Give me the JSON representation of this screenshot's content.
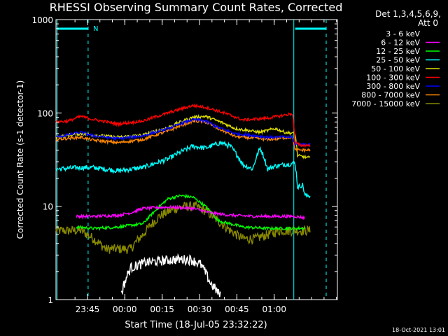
{
  "chart_data": {
    "type": "line",
    "title": "RHESSI Observing Summary Count Rates, Corrected",
    "ylabel": "Corrected Count Rate (s-1 detector-1)",
    "xlabel": "Start Time (18-Jul-05 23:32:22)",
    "yscale": "log",
    "ylim": [
      1,
      1000
    ],
    "xlim_minutes": [
      0,
      113
    ],
    "yticks": [
      "1",
      "10",
      "100",
      "1000"
    ],
    "xticks": [
      {
        "label": "23:45",
        "minutes": 12.63
      },
      {
        "label": "00:00",
        "minutes": 27.63
      },
      {
        "label": "00:15",
        "minutes": 42.63
      },
      {
        "label": "00:30",
        "minutes": 57.63
      },
      {
        "label": "00:45",
        "minutes": 72.63
      },
      {
        "label": "01:00",
        "minutes": 87.63
      }
    ],
    "legend_header": [
      "Det 1,3,4,5,6,9,",
      "Att 0"
    ],
    "legend_placement": "right",
    "annotation_N": "N",
    "dashed_lines_minutes": [
      12.9,
      108.5
    ],
    "solid_lines_minutes": [
      0,
      95.5
    ],
    "night_segments": [
      [
        0,
        13
      ],
      [
        95.5,
        108.5
      ]
    ],
    "series": [
      {
        "name": "3 - 6 keV",
        "color": "#000000",
        "times": [
          0,
          20,
          26,
          30,
          36,
          42,
          48,
          54,
          58,
          62,
          66,
          75,
          90,
          113
        ],
        "values": [
          null,
          null,
          1.1,
          2.2,
          2.5,
          2.6,
          2.7,
          2.7,
          2.4,
          1.5,
          1.1,
          null,
          null,
          null
        ]
      },
      {
        "name": "6 - 12 keV",
        "color": "#ff00ff",
        "times": [
          0,
          8,
          15,
          25,
          30,
          35,
          45,
          55,
          62,
          70,
          80,
          90,
          96,
          100
        ],
        "values": [
          null,
          7.8,
          7.8,
          8.0,
          8.5,
          9.5,
          9.8,
          9.5,
          8.5,
          8.0,
          7.8,
          7.8,
          7.8,
          7.5
        ]
      },
      {
        "name": "12 - 25 keV",
        "color": "#00ff00",
        "times": [
          0,
          8,
          15,
          25,
          35,
          40,
          45,
          50,
          55,
          60,
          65,
          75,
          85,
          95,
          100
        ],
        "values": [
          null,
          6.0,
          5.8,
          6.0,
          6.5,
          9.0,
          12.0,
          13.0,
          12.5,
          10.0,
          7.0,
          6.0,
          5.8,
          5.8,
          5.8
        ]
      },
      {
        "name": "25 - 50 keV",
        "color": "#00ffff",
        "times": [
          0,
          10,
          15,
          25,
          35,
          45,
          55,
          60,
          63,
          66,
          70,
          75,
          79,
          82,
          85,
          88,
          92,
          96,
          97,
          99,
          100,
          102
        ],
        "values": [
          25,
          26,
          26,
          24,
          26,
          32,
          44,
          42,
          45,
          48,
          44,
          28,
          25,
          42,
          25,
          27,
          28,
          29,
          16,
          17,
          13,
          13
        ]
      },
      {
        "name": "50 - 100 keV",
        "color": "#dddd00",
        "times": [
          0,
          10,
          15,
          25,
          35,
          45,
          55,
          60,
          65,
          72,
          82,
          88,
          92,
          96,
          97,
          99,
          102
        ],
        "values": [
          55,
          60,
          58,
          55,
          58,
          70,
          90,
          92,
          82,
          68,
          62,
          68,
          62,
          60,
          35,
          34,
          33
        ]
      },
      {
        "name": "100 - 300 keV",
        "color": "#ff0000",
        "times": [
          0,
          5,
          10,
          15,
          25,
          35,
          45,
          55,
          60,
          65,
          75,
          85,
          95,
          96,
          98,
          102
        ],
        "values": [
          80,
          82,
          92,
          85,
          76,
          82,
          100,
          120,
          115,
          105,
          84,
          88,
          98,
          48,
          45,
          45
        ]
      },
      {
        "name": "300 - 800 keV",
        "color": "#0000ff",
        "times": [
          0,
          10,
          15,
          25,
          35,
          45,
          55,
          60,
          65,
          72,
          85,
          95,
          96,
          102
        ],
        "values": [
          55,
          62,
          57,
          53,
          57,
          68,
          85,
          82,
          70,
          60,
          55,
          55,
          46,
          46
        ]
      },
      {
        "name": "800 - 7000 keV",
        "color": "#ff8800",
        "times": [
          0,
          10,
          15,
          25,
          35,
          45,
          55,
          60,
          65,
          72,
          85,
          95,
          96,
          102
        ],
        "values": [
          52,
          55,
          51,
          48,
          52,
          64,
          82,
          80,
          68,
          56,
          52,
          55,
          40,
          40
        ]
      },
      {
        "name": "7000 - 15000 keV",
        "color": "#888800",
        "times": [
          0,
          10,
          15,
          20,
          25,
          30,
          35,
          42,
          48,
          52,
          56,
          60,
          65,
          70,
          75,
          80,
          85,
          90,
          95,
          100,
          102
        ],
        "values": [
          5.5,
          5.5,
          4.5,
          3.5,
          3.5,
          3.5,
          5.0,
          8.0,
          9.5,
          10.0,
          10.0,
          9.0,
          7.0,
          5.5,
          4.5,
          4.5,
          5.0,
          5.5,
          5.5,
          5.5,
          5.5
        ]
      }
    ]
  },
  "footer": {
    "date": "18-Oct-2021 13:01"
  }
}
